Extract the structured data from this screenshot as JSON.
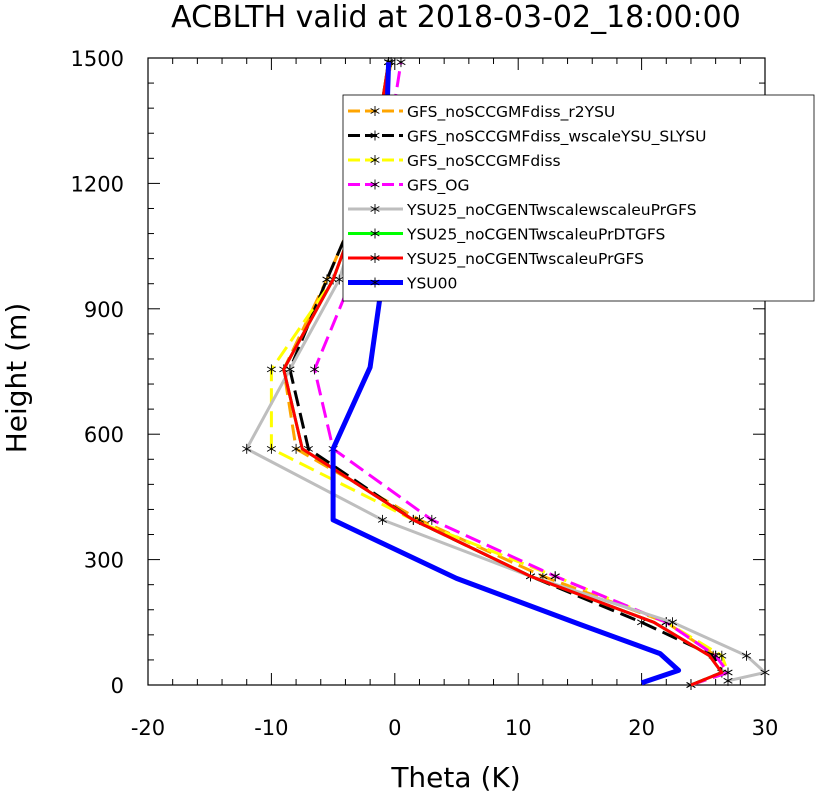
{
  "chart_data": {
    "type": "line",
    "title": "ACBLTH valid at 2018-03-02_18:00:00",
    "xlabel": "Theta (K)",
    "ylabel": "Height (m)",
    "xlim": [
      -20,
      30
    ],
    "ylim": [
      0,
      1500
    ],
    "xticks": [
      "-20",
      "-10",
      "0",
      "10",
      "20",
      "30"
    ],
    "yticks": [
      "0",
      "300",
      "600",
      "900",
      "1200",
      "1500"
    ],
    "legend_position": "top-right",
    "series": [
      {
        "name": "GFS_noSCCGMFdiss_r2YSU",
        "color": "#ffa500",
        "dash": "dashed",
        "marker": "asterisk",
        "x": [
          24,
          26.5,
          26,
          22,
          12,
          2,
          -8,
          -9,
          -5.5,
          -2,
          -0.3
        ],
        "y": [
          0,
          30,
          70,
          150,
          260,
          395,
          565,
          755,
          970,
          1210,
          1490
        ]
      },
      {
        "name": "GFS_noSCCGMFdiss_wscaleYSU_SLYSU",
        "color": "#000000",
        "dash": "dashed",
        "marker": "asterisk",
        "x": [
          24,
          26.5,
          25.8,
          20,
          11,
          1.5,
          -7,
          -8.5,
          -5.5,
          -2,
          -0.5
        ],
        "y": [
          0,
          30,
          70,
          150,
          260,
          395,
          565,
          755,
          970,
          1210,
          1490
        ]
      },
      {
        "name": "GFS_noSCCGMFdiss",
        "color": "#ffff00",
        "dash": "dashed",
        "marker": "asterisk",
        "x": [
          24,
          27,
          26.5,
          22,
          13,
          1.5,
          -10,
          -10,
          -5,
          -2,
          -0.5
        ],
        "y": [
          0,
          30,
          70,
          150,
          260,
          395,
          565,
          755,
          970,
          1210,
          1490
        ]
      },
      {
        "name": "GFS_OG",
        "color": "#ff00ff",
        "dash": "dashed",
        "marker": "asterisk",
        "x": [
          24,
          27,
          26,
          22,
          13,
          3,
          -5,
          -6.5,
          -3.5,
          -1,
          0.5
        ],
        "y": [
          0,
          30,
          70,
          150,
          260,
          395,
          565,
          755,
          970,
          1210,
          1490
        ]
      },
      {
        "name": "YSU25_noCGENTwscalewscaleuPrGFS",
        "color": "#bebebe",
        "dash": "solid",
        "marker": "asterisk",
        "x": [
          27,
          30,
          28.5,
          22.5,
          11,
          -1,
          -12,
          -8.5,
          -4.5,
          -2,
          -0.5
        ],
        "y": [
          10,
          30,
          70,
          150,
          260,
          395,
          565,
          755,
          970,
          1210,
          1490
        ]
      },
      {
        "name": "YSU25_noCGENTwscaleuPrDTGFS",
        "color": "#00ff00",
        "dash": "solid",
        "marker": "none",
        "x": [
          24,
          26.5,
          25.5,
          21,
          11,
          1.5,
          -7.5,
          -9,
          -5,
          -2,
          -0.5
        ],
        "y": [
          0,
          30,
          70,
          150,
          260,
          395,
          565,
          755,
          970,
          1210,
          1490
        ]
      },
      {
        "name": "YSU25_noCGENTwscaleuPrGFS",
        "color": "#ff0000",
        "dash": "solid",
        "marker": "none",
        "x": [
          24,
          26.5,
          25.5,
          21,
          11,
          1.5,
          -7.5,
          -9,
          -5,
          -2,
          -0.5
        ],
        "y": [
          0,
          30,
          70,
          150,
          260,
          395,
          565,
          755,
          970,
          1210,
          1490
        ]
      },
      {
        "name": "YSU00",
        "color": "#0000ff",
        "dash": "solid",
        "marker": "none",
        "x": [
          20,
          23,
          21.5,
          15,
          5,
          -5,
          -5,
          -2,
          -1,
          -0.8,
          -0.5
        ],
        "y": [
          5,
          35,
          75,
          145,
          255,
          395,
          565,
          760,
          970,
          1210,
          1490
        ]
      }
    ]
  }
}
